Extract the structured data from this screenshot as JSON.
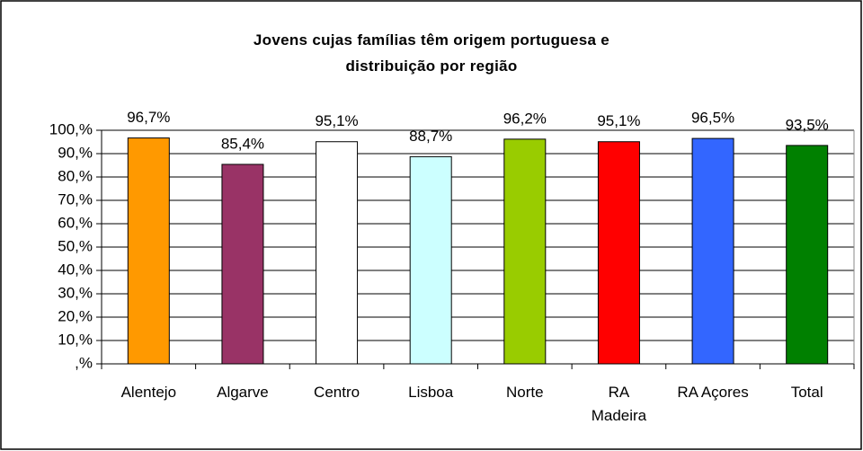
{
  "chart_data": {
    "type": "bar",
    "title": "Jovens cujas famílias têm origem portuguesa e distribuição por região",
    "categories": [
      "Alentejo",
      "Algarve",
      "Centro",
      "Lisboa",
      "Norte",
      "RA Madeira",
      "RA Açores",
      "Total"
    ],
    "values": [
      96.7,
      85.4,
      95.1,
      88.7,
      96.2,
      95.1,
      96.5,
      93.5
    ],
    "value_labels": [
      "96,7%",
      "85,4%",
      "95,1%",
      "88,7%",
      "96,2%",
      "95,1%",
      "96,5%",
      "93,5%"
    ],
    "colors": [
      "#ff9900",
      "#993366",
      "#ffffff",
      "#ccffff",
      "#99cc00",
      "#ff0000",
      "#3366ff",
      "#008000"
    ],
    "ylim": [
      0,
      100
    ],
    "yticks": [
      {
        "value": 0,
        "label": ",%"
      },
      {
        "value": 10,
        "label": "10,%"
      },
      {
        "value": 20,
        "label": "20,%"
      },
      {
        "value": 30,
        "label": "30,%"
      },
      {
        "value": 40,
        "label": "40,%"
      },
      {
        "value": 50,
        "label": "50,%"
      },
      {
        "value": 60,
        "label": "60,%"
      },
      {
        "value": 70,
        "label": "70,%"
      },
      {
        "value": 80,
        "label": "80,%"
      },
      {
        "value": 90,
        "label": "90,%"
      },
      {
        "value": 100,
        "label": "100,%"
      }
    ],
    "grid": true
  }
}
